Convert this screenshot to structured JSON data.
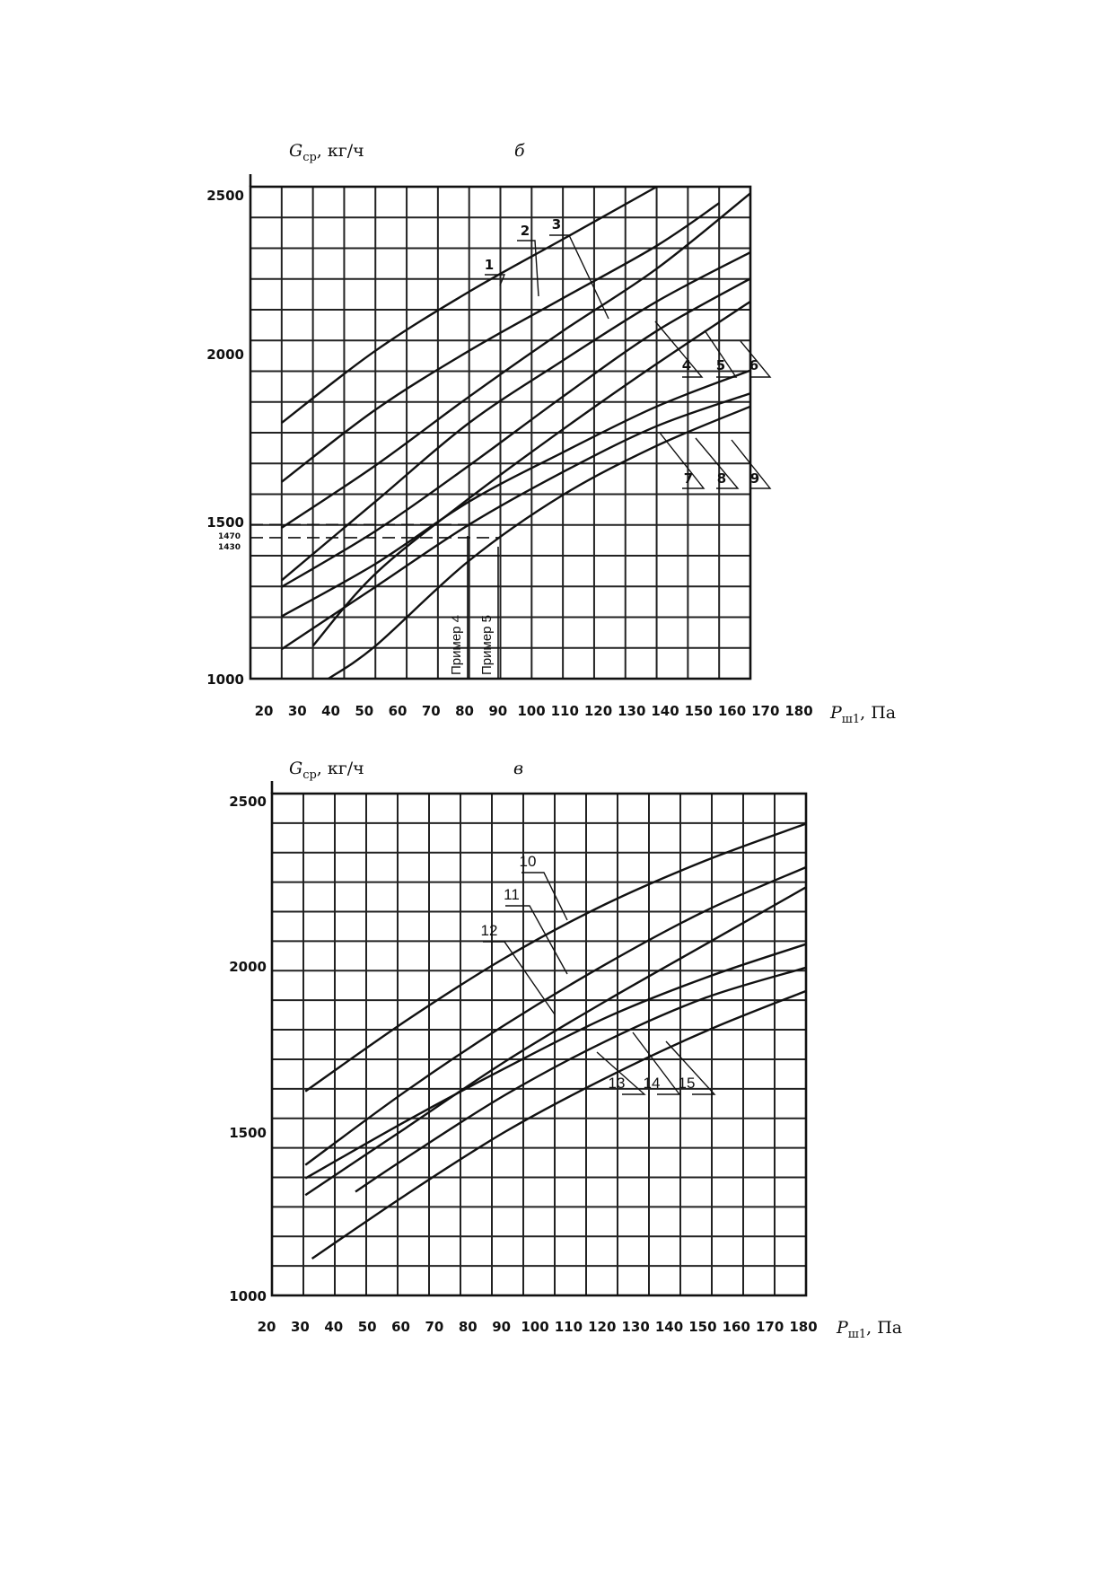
{
  "chart_data": [
    {
      "type": "line",
      "panel_letter": "б",
      "ylabel_main": "G",
      "ylabel_sub": "ср",
      "ylabel_unit": ", кг/ч",
      "xlabel_main": "P",
      "xlabel_sub": "ш1",
      "xlabel_unit": ", Па",
      "xlim": [
        20,
        180
      ],
      "ylim": [
        1000,
        2500
      ],
      "grid": true,
      "x_ticks": [
        "20",
        "30",
        "40",
        "50",
        "60",
        "70",
        "80",
        "90",
        "100",
        "110",
        "120",
        "130",
        "140",
        "150",
        "160",
        "170",
        "180"
      ],
      "y_ticks": [
        "1000",
        "1500",
        "2000",
        "2500"
      ],
      "y_extra_ticks": [
        "1470",
        "1430"
      ],
      "series": [
        {
          "name": "1",
          "x": [
            30,
            60,
            90,
            120,
            150
          ],
          "y": [
            1780,
            2000,
            2180,
            2340,
            2500
          ]
        },
        {
          "name": "2",
          "x": [
            30,
            60,
            90,
            120,
            150,
            170
          ],
          "y": [
            1600,
            1820,
            2000,
            2160,
            2320,
            2450
          ]
        },
        {
          "name": "3",
          "x": [
            30,
            60,
            90,
            120,
            150,
            180
          ],
          "y": [
            1460,
            1650,
            1860,
            2060,
            2250,
            2480
          ]
        },
        {
          "name": "4",
          "x": [
            30,
            60,
            90,
            120,
            150,
            180
          ],
          "y": [
            1300,
            1540,
            1780,
            1970,
            2150,
            2300
          ]
        },
        {
          "name": "5",
          "x": [
            30,
            60,
            90,
            120,
            150,
            180
          ],
          "y": [
            1280,
            1450,
            1650,
            1860,
            2060,
            2220
          ]
        },
        {
          "name": "6",
          "x": [
            40,
            60,
            90,
            120,
            150,
            180
          ],
          "y": [
            1100,
            1320,
            1550,
            1760,
            1960,
            2150
          ]
        },
        {
          "name": "7",
          "x": [
            30,
            60,
            90,
            120,
            150,
            180
          ],
          "y": [
            1190,
            1350,
            1540,
            1690,
            1830,
            1940
          ]
        },
        {
          "name": "8",
          "x": [
            30,
            60,
            90,
            120,
            150,
            180
          ],
          "y": [
            1090,
            1280,
            1470,
            1630,
            1770,
            1870
          ]
        },
        {
          "name": "9",
          "x": [
            45,
            60,
            90,
            120,
            150,
            180
          ],
          "y": [
            1000,
            1100,
            1360,
            1560,
            1710,
            1830
          ]
        }
      ],
      "annotations": [
        {
          "text": "Пример 4",
          "x": 80
        },
        {
          "text": "Пример 5",
          "x": 87
        }
      ],
      "reference_lines_y": [
        1470,
        1430
      ]
    },
    {
      "type": "line",
      "panel_letter": "в",
      "ylabel_main": "G",
      "ylabel_sub": "ср",
      "ylabel_unit": ", кг/ч",
      "xlabel_main": "P",
      "xlabel_sub": "ш1",
      "xlabel_unit": ", Па",
      "xlim": [
        20,
        180
      ],
      "ylim": [
        1000,
        2500
      ],
      "grid": true,
      "x_ticks": [
        "20",
        "30",
        "40",
        "50",
        "60",
        "70",
        "80",
        "90",
        "100",
        "110",
        "120",
        "130",
        "140",
        "150",
        "160",
        "170",
        "180"
      ],
      "y_ticks": [
        "1000",
        "1500",
        "2000",
        "2500"
      ],
      "series": [
        {
          "name": "10",
          "x": [
            30,
            60,
            90,
            120,
            150,
            180
          ],
          "y": [
            1610,
            1820,
            2010,
            2170,
            2300,
            2410
          ]
        },
        {
          "name": "11",
          "x": [
            30,
            60,
            90,
            120,
            150,
            180
          ],
          "y": [
            1390,
            1610,
            1810,
            1990,
            2150,
            2280
          ]
        },
        {
          "name": "12",
          "x": [
            30,
            60,
            90,
            120,
            150,
            180
          ],
          "y": [
            1300,
            1500,
            1700,
            1880,
            2050,
            2220
          ]
        },
        {
          "name": "13",
          "x": [
            30,
            60,
            90,
            120,
            150,
            180
          ],
          "y": [
            1350,
            1520,
            1680,
            1830,
            1950,
            2050
          ]
        },
        {
          "name": "14",
          "x": [
            45,
            60,
            90,
            120,
            150,
            180
          ],
          "y": [
            1310,
            1410,
            1600,
            1760,
            1890,
            1980
          ]
        },
        {
          "name": "15",
          "x": [
            32,
            60,
            90,
            120,
            150,
            180
          ],
          "y": [
            1110,
            1300,
            1490,
            1650,
            1790,
            1910
          ]
        }
      ]
    }
  ]
}
